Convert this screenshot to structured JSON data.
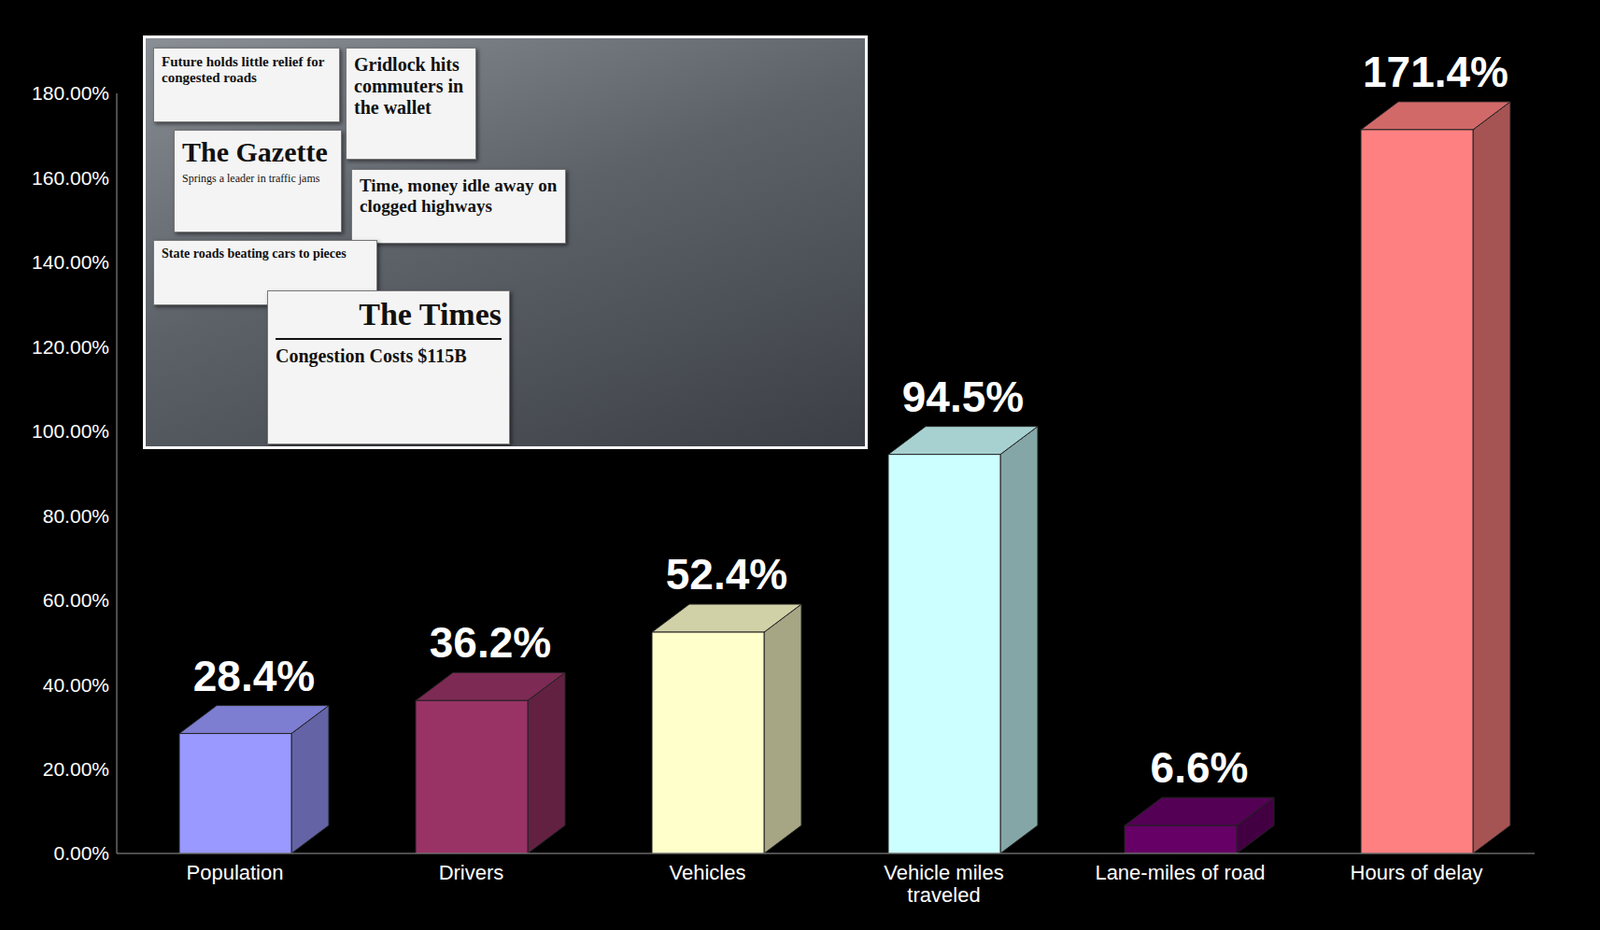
{
  "chart_data": {
    "type": "bar",
    "categories": [
      "Population",
      "Drivers",
      "Vehicles",
      "Vehicle miles traveled",
      "Lane-miles of road",
      "Hours of delay"
    ],
    "values": [
      28.4,
      36.2,
      52.4,
      94.5,
      6.6,
      171.4
    ],
    "value_labels": [
      "28.4%",
      "36.2%",
      "52.4%",
      "94.5%",
      "6.6%",
      "171.4%"
    ],
    "colors": [
      "#9999ff",
      "#993366",
      "#ffffcc",
      "#ccffff",
      "#660066",
      "#ff8080"
    ],
    "ylim": [
      0,
      180
    ],
    "yticks": [
      {
        "value": 0,
        "label": "0.00%"
      },
      {
        "value": 20,
        "label": "20.00%"
      },
      {
        "value": 40,
        "label": "40.00%"
      },
      {
        "value": 60,
        "label": "60.00%"
      },
      {
        "value": 80,
        "label": "80.00%"
      },
      {
        "value": 100,
        "label": "100.00%"
      },
      {
        "value": 120,
        "label": "120.00%"
      },
      {
        "value": 140,
        "label": "140.00%"
      },
      {
        "value": 160,
        "label": "160.00%"
      },
      {
        "value": 180,
        "label": "180.00%"
      }
    ],
    "grid": false,
    "data_labels": true,
    "annotations": [
      "Future holds little relief for congested roads",
      "Gridlock hits commuters in the wallet",
      "The Gazette",
      "Springs a leader in traffic jams",
      "Time, money idle away on clogged highways",
      "State roads beating cars to pieces",
      "The Times",
      "Congestion Costs $115B"
    ]
  }
}
